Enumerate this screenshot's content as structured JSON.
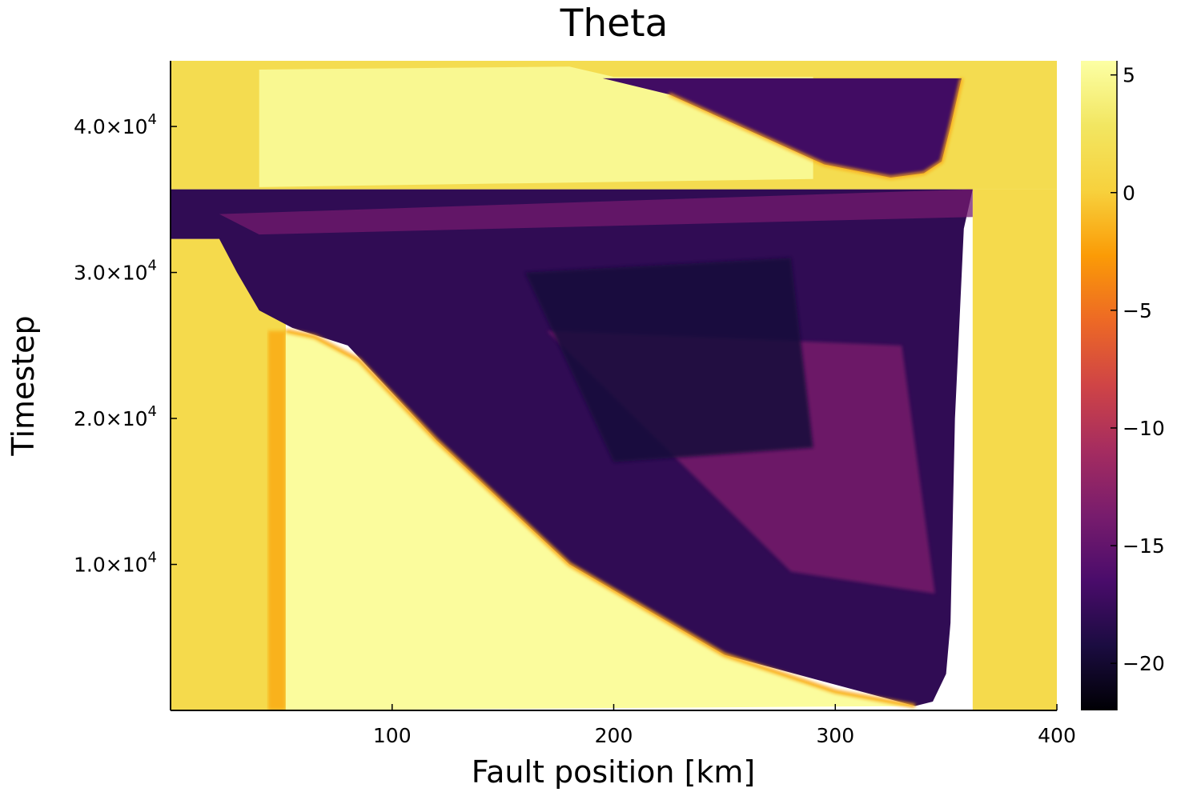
{
  "chart_data": {
    "type": "heatmap",
    "title": "Theta",
    "xlabel": "Fault position [km]",
    "ylabel": "Timestep",
    "xlim": [
      0,
      400
    ],
    "ylim": [
      0,
      44500
    ],
    "x_ticks": [
      {
        "value": 100,
        "label": "100"
      },
      {
        "value": 200,
        "label": "200"
      },
      {
        "value": 300,
        "label": "300"
      },
      {
        "value": 400,
        "label": "400"
      }
    ],
    "y_ticks": [
      {
        "value": 10000,
        "mantissa": "1.0×10",
        "exponent": "4"
      },
      {
        "value": 20000,
        "mantissa": "2.0×10",
        "exponent": "4"
      },
      {
        "value": 30000,
        "mantissa": "3.0×10",
        "exponent": "4"
      },
      {
        "value": 40000,
        "mantissa": "4.0×10",
        "exponent": "4"
      }
    ],
    "colorbar": {
      "colormap": "inferno",
      "range": [
        -22,
        5.6
      ],
      "ticks": [
        {
          "value": 5,
          "label": "5"
        },
        {
          "value": 0,
          "label": "0"
        },
        {
          "value": -5,
          "label": "−5"
        },
        {
          "value": -10,
          "label": "−10"
        },
        {
          "value": -15,
          "label": "−15"
        },
        {
          "value": -20,
          "label": "−20"
        }
      ]
    },
    "grid": false,
    "regions": [
      {
        "name": "left-background",
        "x": [
          0,
          52
        ],
        "y": [
          0,
          32300
        ],
        "value": 1.2
      },
      {
        "name": "right-background",
        "x": [
          362,
          400
        ],
        "y": [
          0,
          35700
        ],
        "value": 1.2
      },
      {
        "name": "event1-rupture",
        "x": [
          40,
          362
        ],
        "y": [
          0,
          35700
        ],
        "value": -18
      },
      {
        "name": "interevent-high",
        "x": [
          52,
          340
        ],
        "y": [
          0,
          26000
        ],
        "value": 5.3
      },
      {
        "name": "event2-background",
        "x": [
          0,
          400
        ],
        "y": [
          35700,
          44500
        ],
        "value": 1.5
      },
      {
        "name": "event2-high",
        "x": [
          40,
          290
        ],
        "y": [
          35800,
          44200
        ],
        "value": 4.8
      },
      {
        "name": "event2-rupture",
        "x": [
          195,
          357
        ],
        "y": [
          36500,
          43300
        ],
        "value": -17
      }
    ]
  }
}
